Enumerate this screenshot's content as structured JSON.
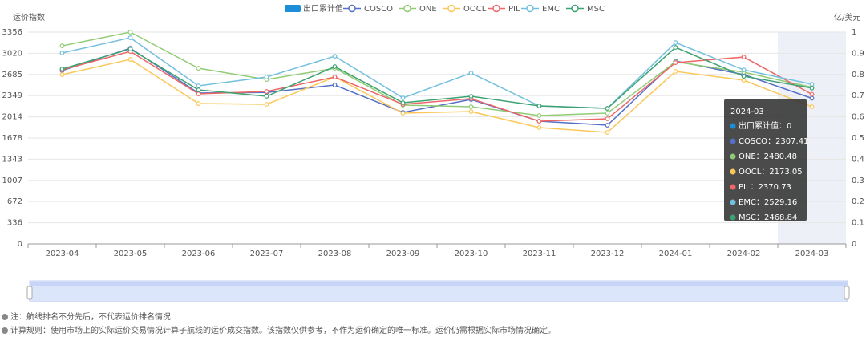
{
  "chart_data": {
    "type": "line",
    "y_axis_label": "运价指数",
    "y2_axis_label": "亿/美元",
    "categories": [
      "2023-04",
      "2023-05",
      "2023-06",
      "2023-07",
      "2023-08",
      "2023-09",
      "2023-10",
      "2023-11",
      "2023-12",
      "2024-01",
      "2024-02",
      "2024-03"
    ],
    "series": [
      {
        "name": "出口累计值",
        "type": "bar",
        "axis": "y2",
        "color": "#1c8ed8",
        "values": [
          0,
          0,
          0,
          0,
          0,
          0,
          0,
          0,
          0,
          0,
          0,
          0
        ]
      },
      {
        "name": "COSCO",
        "color": "#5470c6",
        "values": [
          2745,
          3101,
          2390,
          2400,
          2517,
          2084,
          2288,
          1945,
          1881,
          2898,
          2682,
          2307.41
        ]
      },
      {
        "name": "ONE",
        "color": "#91cc75",
        "values": [
          3139,
          3356,
          2783,
          2605,
          2783,
          2199,
          2173,
          2034,
          2072,
          2885,
          2720,
          2480.48
        ]
      },
      {
        "name": "OOCL",
        "color": "#fac858",
        "values": [
          2682,
          2923,
          2224,
          2212,
          2644,
          2072,
          2097,
          1843,
          1767,
          2733,
          2593,
          2173.05
        ]
      },
      {
        "name": "PIL",
        "color": "#ee6666",
        "values": [
          2758,
          3050,
          2377,
          2415,
          2644,
          2212,
          2301,
          1945,
          1983,
          2872,
          2961,
          2370.73
        ]
      },
      {
        "name": "EMC",
        "color": "#73c0de",
        "values": [
          3025,
          3266,
          2504,
          2644,
          2974,
          2313,
          2707,
          2186,
          2148,
          3190,
          2758,
          2529.16
        ]
      },
      {
        "name": "MSC",
        "color": "#3ba272",
        "values": [
          2771,
          3088,
          2440,
          2339,
          2809,
          2237,
          2339,
          2186,
          2148,
          3114,
          2656,
          2468.84
        ]
      }
    ],
    "ylim": [
      0,
      3356
    ],
    "yticks": [
      0,
      336,
      672,
      1007,
      1343,
      1678,
      2014,
      2349,
      2685,
      3020,
      3356
    ],
    "y2lim": [
      0,
      1
    ],
    "y2ticks": [
      0,
      0.1,
      0.2,
      0.3,
      0.4,
      0.5,
      0.6,
      0.7,
      0.8,
      0.9,
      1
    ],
    "grid": true,
    "tooltip_index": 11,
    "tooltip_separator": "：",
    "notes": [
      "注：航线排名不分先后，不代表运价排名情况",
      "计算规则：使用市场上的实际运价交易情况计算子航线的运价成交指数。该指数仅供参考，不作为运价确定的唯一标准。运价仍需根据实际市场情况确定。"
    ]
  }
}
